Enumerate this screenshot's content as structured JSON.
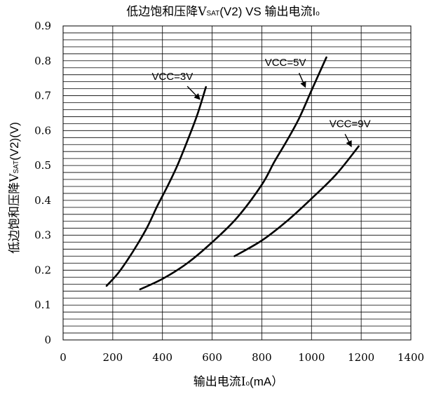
{
  "chart_data": {
    "type": "line",
    "title": {
      "main": "低边饱和压降V",
      "sub": "SAT",
      "rest": "(V2) VS 输出电流I",
      "sub2": "o"
    },
    "xlabel": {
      "main": "输出电流I",
      "sub": "o",
      "rest": "(mA）"
    },
    "ylabel": {
      "main": "低边饱和压降V",
      "sub": "SAT",
      "rest": "(V2)(V)"
    },
    "xlim": [
      0,
      1400
    ],
    "ylim": [
      0,
      0.9
    ],
    "x_ticks": [
      "0",
      "200",
      "400",
      "600",
      "800",
      "1000",
      "1200",
      "1400"
    ],
    "y_ticks": [
      "0",
      "0.1",
      "0.2",
      "0.3",
      "0.4",
      "0.5",
      "0.6",
      "0.7",
      "0.8",
      "0.9"
    ],
    "x_tick_values": [
      0,
      200,
      400,
      600,
      800,
      1000,
      1200,
      1400
    ],
    "y_tick_values": [
      0,
      0.1,
      0.2,
      0.3,
      0.4,
      0.5,
      0.6,
      0.7,
      0.8,
      0.9
    ],
    "x_grid_step": 200,
    "y_grid_step": 0.02,
    "series": [
      {
        "name": "VCC=3V",
        "x": [
          175,
          220,
          260,
          300,
          340,
          380,
          420,
          460,
          500,
          540,
          575
        ],
        "y": [
          0.155,
          0.19,
          0.23,
          0.275,
          0.325,
          0.385,
          0.44,
          0.5,
          0.57,
          0.645,
          0.725
        ]
      },
      {
        "name": "VCC=5V",
        "x": [
          310,
          400,
          500,
          600,
          700,
          800,
          850,
          900,
          950,
          1000,
          1060
        ],
        "y": [
          0.145,
          0.175,
          0.22,
          0.28,
          0.35,
          0.445,
          0.51,
          0.57,
          0.635,
          0.715,
          0.81
        ]
      },
      {
        "name": "VCC=9V",
        "x": [
          690,
          800,
          900,
          1000,
          1100,
          1190
        ],
        "y": [
          0.24,
          0.285,
          0.34,
          0.405,
          0.475,
          0.555
        ]
      }
    ],
    "annotations": [
      {
        "text": "VCC=3V",
        "series": "VCC=3V",
        "text_at": [
          440,
          0.745
        ],
        "arrow_from": [
          500,
          0.727
        ],
        "arrow_to": [
          550,
          0.69
        ]
      },
      {
        "text": "VCC=5V",
        "series": "VCC=5V",
        "text_at": [
          895,
          0.785
        ],
        "arrow_from": [
          950,
          0.765
        ],
        "arrow_to": [
          975,
          0.725
        ]
      },
      {
        "text": "VCC=9V",
        "series": "VCC=9V",
        "text_at": [
          1155,
          0.61
        ],
        "arrow_from": [
          1135,
          0.59
        ],
        "arrow_to": [
          1160,
          0.555
        ]
      }
    ],
    "grid": true,
    "legend": "none"
  }
}
